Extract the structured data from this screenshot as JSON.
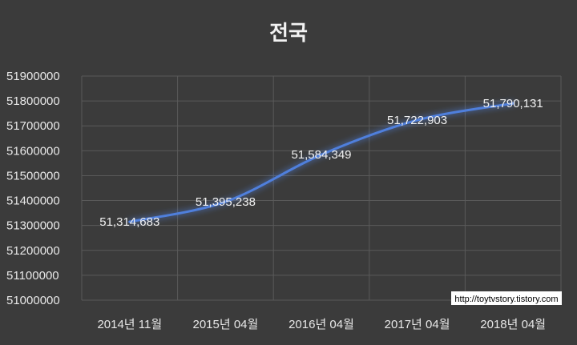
{
  "chart_data": {
    "type": "line",
    "title": "전국",
    "categories": [
      "2014년 11월",
      "2015년 04월",
      "2016년 04월",
      "2017년 04월",
      "2018년 04월"
    ],
    "series": [
      {
        "values": [
          51314683,
          51395238,
          51584349,
          51722903,
          51790131
        ]
      }
    ],
    "data_labels": [
      "51,314,683",
      "51,395,238",
      "51,584,349",
      "51,722,903",
      "51,790,131"
    ],
    "ylim": [
      51000000,
      51900000
    ],
    "yticks": [
      "51000000",
      "51100000",
      "51200000",
      "51300000",
      "51400000",
      "51500000",
      "51600000",
      "51700000",
      "51800000",
      "51900000"
    ],
    "grid": true,
    "line_color": "#4f7fdc",
    "background": "#3b3b3b"
  },
  "watermark": "http://toytvstory.tistory.com"
}
